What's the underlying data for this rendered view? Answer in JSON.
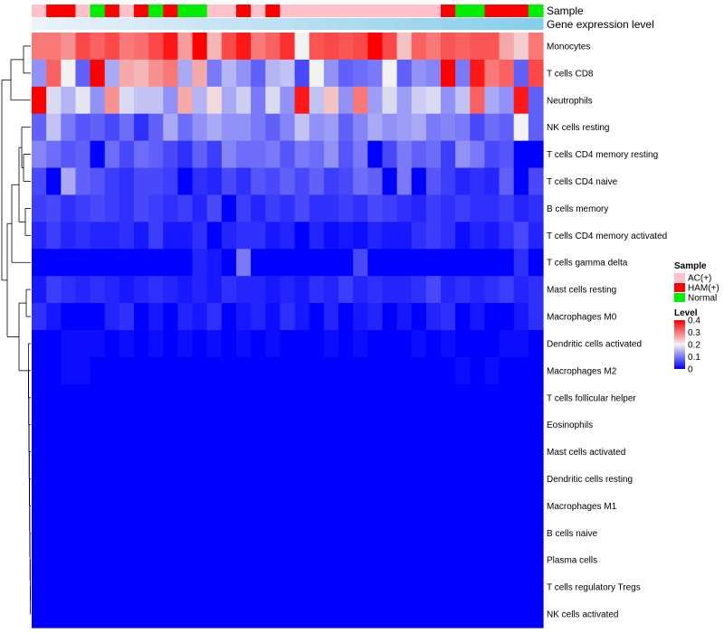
{
  "chart_data": {
    "type": "heatmap",
    "rows": [
      "Monocytes",
      "T cells CD8",
      "Neutrophils",
      "NK cells resting",
      "T cells CD4 memory resting",
      "T cells CD4 naive",
      "B cells memory",
      "T cells CD4 memory activated",
      "T cells gamma delta",
      "Mast cells resting",
      "Macrophages M0",
      "Dendritic cells activated",
      "Macrophages M2",
      "T cells follicular helper",
      "Eosinophils",
      "Mast cells activated",
      "Dendritic cells resting",
      "Macrophages M1",
      "B cells naive",
      "Plasma cells",
      "T cells regulatory  Tregs",
      "NK cells activated"
    ],
    "annotation_labels": {
      "sample": "Sample",
      "gene_expression": "Gene expression level"
    },
    "sample_groups": [
      "AC(+)",
      "HAM(+)",
      "HAM(+)",
      "AC(+)",
      "Normal",
      "HAM(+)",
      "AC(+)",
      "HAM(+)",
      "Normal",
      "HAM(+)",
      "Normal",
      "Normal",
      "AC(+)",
      "AC(+)",
      "HAM(+)",
      "AC(+)",
      "HAM(+)",
      "AC(+)",
      "AC(+)",
      "AC(+)",
      "AC(+)",
      "AC(+)",
      "AC(+)",
      "AC(+)",
      "AC(+)",
      "AC(+)",
      "AC(+)",
      "AC(+)",
      "HAM(+)",
      "Normal",
      "Normal",
      "HAM(+)",
      "HAM(+)",
      "HAM(+)",
      "Normal"
    ],
    "values": [
      [
        0.3,
        0.3,
        0.28,
        0.34,
        0.32,
        0.34,
        0.3,
        0.31,
        0.34,
        0.38,
        0.27,
        0.4,
        0.25,
        0.34,
        0.38,
        0.3,
        0.32,
        0.36,
        0.2,
        0.33,
        0.34,
        0.33,
        0.34,
        0.4,
        0.34,
        0.24,
        0.32,
        0.3,
        0.33,
        0.32,
        0.33,
        0.33,
        0.26,
        0.23,
        0.3
      ],
      [
        0.12,
        0.32,
        0.2,
        0.08,
        0.4,
        0.14,
        0.26,
        0.25,
        0.28,
        0.3,
        0.14,
        0.26,
        0.1,
        0.15,
        0.12,
        0.08,
        0.15,
        0.16,
        0.06,
        0.2,
        0.12,
        0.08,
        0.09,
        0.1,
        0.2,
        0.08,
        0.12,
        0.11,
        0.4,
        0.1,
        0.38,
        0.3,
        0.32,
        0.08,
        0.34
      ],
      [
        0.42,
        0.18,
        0.15,
        0.19,
        0.12,
        0.28,
        0.18,
        0.16,
        0.16,
        0.12,
        0.26,
        0.15,
        0.22,
        0.14,
        0.17,
        0.1,
        0.18,
        0.12,
        0.38,
        0.16,
        0.24,
        0.12,
        0.3,
        0.13,
        0.18,
        0.13,
        0.17,
        0.18,
        0.12,
        0.16,
        0.32,
        0.14,
        0.12,
        0.38,
        0.08
      ],
      [
        0.08,
        0.16,
        0.1,
        0.07,
        0.08,
        0.06,
        0.09,
        0.04,
        0.08,
        0.14,
        0.09,
        0.12,
        0.14,
        0.12,
        0.12,
        0.1,
        0.08,
        0.11,
        0.16,
        0.12,
        0.13,
        0.08,
        0.11,
        0.14,
        0.12,
        0.13,
        0.14,
        0.1,
        0.11,
        0.1,
        0.06,
        0.09,
        0.08,
        0.2,
        0.08
      ],
      [
        0.11,
        0.09,
        0.07,
        0.08,
        0.0,
        0.09,
        0.06,
        0.09,
        0.08,
        0.06,
        0.04,
        0.08,
        0.05,
        0.11,
        0.09,
        0.09,
        0.1,
        0.07,
        0.1,
        0.09,
        0.12,
        0.07,
        0.1,
        0.0,
        0.06,
        0.1,
        0.08,
        0.09,
        0.05,
        0.12,
        0.1,
        0.06,
        0.07,
        0.0,
        0.0
      ],
      [
        0.06,
        0.0,
        0.14,
        0.08,
        0.07,
        0.05,
        0.04,
        0.06,
        0.06,
        0.05,
        0.0,
        0.04,
        0.03,
        0.06,
        0.04,
        0.07,
        0.06,
        0.08,
        0.06,
        0.08,
        0.05,
        0.06,
        0.09,
        0.08,
        0.0,
        0.1,
        0.0,
        0.07,
        0.05,
        0.03,
        0.04,
        0.03,
        0.08,
        0.0,
        0.06
      ],
      [
        0.05,
        0.06,
        0.04,
        0.05,
        0.06,
        0.05,
        0.04,
        0.06,
        0.05,
        0.04,
        0.05,
        0.03,
        0.06,
        0.0,
        0.05,
        0.03,
        0.05,
        0.04,
        0.06,
        0.04,
        0.04,
        0.05,
        0.04,
        0.06,
        0.05,
        0.04,
        0.03,
        0.05,
        0.04,
        0.05,
        0.04,
        0.04,
        0.05,
        0.03,
        0.04
      ],
      [
        0.03,
        0.05,
        0.03,
        0.04,
        0.03,
        0.03,
        0.04,
        0.02,
        0.05,
        0.02,
        0.02,
        0.04,
        0.0,
        0.03,
        0.04,
        0.04,
        0.02,
        0.03,
        0.0,
        0.03,
        0.01,
        0.02,
        0.01,
        0.03,
        0.02,
        0.02,
        0.04,
        0.05,
        0.04,
        0.01,
        0.03,
        0.02,
        0.04,
        0.06,
        0.03
      ],
      [
        0.0,
        0.0,
        0.0,
        0.0,
        0.0,
        0.0,
        0.0,
        0.0,
        0.0,
        0.0,
        0.0,
        0.03,
        0.02,
        0.0,
        0.1,
        0.0,
        0.0,
        0.0,
        0.0,
        0.0,
        0.0,
        0.0,
        0.06,
        0.0,
        0.0,
        0.0,
        0.0,
        0.0,
        0.0,
        0.0,
        0.0,
        0.0,
        0.0,
        0.04,
        0.0
      ],
      [
        0.02,
        0.05,
        0.04,
        0.03,
        0.04,
        0.03,
        0.02,
        0.03,
        0.04,
        0.03,
        0.02,
        0.03,
        0.02,
        0.04,
        0.03,
        0.03,
        0.02,
        0.03,
        0.02,
        0.04,
        0.03,
        0.05,
        0.03,
        0.04,
        0.03,
        0.03,
        0.04,
        0.06,
        0.03,
        0.04,
        0.03,
        0.04,
        0.05,
        0.03,
        0.04
      ],
      [
        0.04,
        0.02,
        0.0,
        0.0,
        0.0,
        0.03,
        0.04,
        0.0,
        0.02,
        0.0,
        0.03,
        0.02,
        0.04,
        0.0,
        0.02,
        0.03,
        0.01,
        0.04,
        0.02,
        0.0,
        0.03,
        0.0,
        0.02,
        0.03,
        0.0,
        0.02,
        0.0,
        0.03,
        0.04,
        0.0,
        0.02,
        0.0,
        0.0,
        0.02,
        0.04
      ],
      [
        0.0,
        0.0,
        0.01,
        0.01,
        0.01,
        0.0,
        0.01,
        0.0,
        0.01,
        0.0,
        0.01,
        0.0,
        0.01,
        0.0,
        0.01,
        0.0,
        0.01,
        0.0,
        0.0,
        0.0,
        0.01,
        0.0,
        0.01,
        0.0,
        0.0,
        0.0,
        0.01,
        0.0,
        0.01,
        0.0,
        0.0,
        0.0,
        0.01,
        0.01,
        0.0
      ],
      [
        0.0,
        0.0,
        0.01,
        0.01,
        0.0,
        0.0,
        0.0,
        0.0,
        0.0,
        0.0,
        0.0,
        0.0,
        0.0,
        0.0,
        0.0,
        0.0,
        0.0,
        0.0,
        0.0,
        0.0,
        0.0,
        0.0,
        0.0,
        0.0,
        0.0,
        0.0,
        0.0,
        0.0,
        0.0,
        0.01,
        0.0,
        0.01,
        0.0,
        0.0,
        0.0
      ],
      [
        0.0,
        0.0,
        0.0,
        0.0,
        0.0,
        0.0,
        0.0,
        0.0,
        0.0,
        0.0,
        0.0,
        0.0,
        0.0,
        0.0,
        0.0,
        0.0,
        0.0,
        0.0,
        0.0,
        0.0,
        0.0,
        0.0,
        0.0,
        0.0,
        0.0,
        0.0,
        0.0,
        0.0,
        0.0,
        0.0,
        0.0,
        0.0,
        0.0,
        0.0,
        0.0
      ],
      [
        0.0,
        0.0,
        0.0,
        0.0,
        0.0,
        0.0,
        0.0,
        0.0,
        0.0,
        0.0,
        0.0,
        0.0,
        0.0,
        0.0,
        0.0,
        0.0,
        0.0,
        0.0,
        0.0,
        0.0,
        0.0,
        0.0,
        0.0,
        0.0,
        0.0,
        0.0,
        0.0,
        0.0,
        0.0,
        0.0,
        0.0,
        0.0,
        0.0,
        0.0,
        0.0
      ],
      [
        0.0,
        0.0,
        0.0,
        0.0,
        0.0,
        0.0,
        0.0,
        0.0,
        0.0,
        0.0,
        0.0,
        0.0,
        0.0,
        0.0,
        0.0,
        0.0,
        0.0,
        0.0,
        0.0,
        0.0,
        0.0,
        0.0,
        0.0,
        0.0,
        0.0,
        0.0,
        0.0,
        0.0,
        0.0,
        0.0,
        0.0,
        0.0,
        0.0,
        0.0,
        0.0
      ],
      [
        0.0,
        0.0,
        0.0,
        0.0,
        0.0,
        0.0,
        0.0,
        0.0,
        0.0,
        0.0,
        0.0,
        0.0,
        0.0,
        0.0,
        0.0,
        0.0,
        0.0,
        0.0,
        0.0,
        0.0,
        0.0,
        0.0,
        0.0,
        0.0,
        0.0,
        0.0,
        0.0,
        0.0,
        0.0,
        0.0,
        0.0,
        0.0,
        0.0,
        0.0,
        0.0
      ],
      [
        0.0,
        0.0,
        0.0,
        0.0,
        0.0,
        0.0,
        0.0,
        0.0,
        0.0,
        0.0,
        0.0,
        0.0,
        0.0,
        0.0,
        0.0,
        0.0,
        0.0,
        0.0,
        0.0,
        0.0,
        0.0,
        0.0,
        0.0,
        0.0,
        0.0,
        0.0,
        0.0,
        0.0,
        0.0,
        0.0,
        0.0,
        0.0,
        0.0,
        0.0,
        0.0
      ],
      [
        0.0,
        0.0,
        0.0,
        0.0,
        0.0,
        0.0,
        0.0,
        0.0,
        0.0,
        0.0,
        0.0,
        0.0,
        0.0,
        0.0,
        0.0,
        0.0,
        0.0,
        0.0,
        0.0,
        0.0,
        0.0,
        0.0,
        0.0,
        0.0,
        0.0,
        0.0,
        0.0,
        0.0,
        0.0,
        0.0,
        0.0,
        0.0,
        0.0,
        0.0,
        0.0
      ],
      [
        0.0,
        0.0,
        0.0,
        0.0,
        0.0,
        0.0,
        0.0,
        0.0,
        0.0,
        0.0,
        0.0,
        0.0,
        0.0,
        0.0,
        0.0,
        0.0,
        0.0,
        0.0,
        0.0,
        0.0,
        0.0,
        0.0,
        0.0,
        0.0,
        0.0,
        0.0,
        0.0,
        0.0,
        0.0,
        0.0,
        0.0,
        0.0,
        0.0,
        0.0,
        0.0
      ],
      [
        0.0,
        0.0,
        0.0,
        0.0,
        0.0,
        0.0,
        0.0,
        0.0,
        0.0,
        0.0,
        0.0,
        0.0,
        0.0,
        0.0,
        0.0,
        0.0,
        0.0,
        0.0,
        0.0,
        0.0,
        0.0,
        0.0,
        0.0,
        0.0,
        0.0,
        0.0,
        0.0,
        0.0,
        0.0,
        0.0,
        0.0,
        0.0,
        0.0,
        0.0,
        0.0
      ],
      [
        0.0,
        0.0,
        0.0,
        0.0,
        0.0,
        0.0,
        0.0,
        0.0,
        0.0,
        0.0,
        0.0,
        0.0,
        0.0,
        0.0,
        0.0,
        0.0,
        0.0,
        0.0,
        0.0,
        0.0,
        0.0,
        0.0,
        0.0,
        0.0,
        0.0,
        0.0,
        0.0,
        0.0,
        0.0,
        0.0,
        0.0,
        0.0,
        0.0,
        0.0,
        0.0
      ]
    ],
    "legend": {
      "sample_title": "Sample",
      "sample_entries": [
        {
          "label": "AC(+)",
          "color": "#FFC0CB"
        },
        {
          "label": "HAM(+)",
          "color": "#FF0000"
        },
        {
          "label": "Normal",
          "color": "#00EE00"
        }
      ],
      "level_title": "Level",
      "level_ticks": [
        "0.4",
        "0.3",
        "0.2",
        "0.1",
        "0"
      ],
      "level_range": [
        0,
        0.4
      ]
    },
    "colors": {
      "low": "#0000FF",
      "mid": "#F2F2F2",
      "high": "#FF0000",
      "gene_expression_bar": "#87CEEB",
      "dendrogram": "#000000"
    }
  }
}
